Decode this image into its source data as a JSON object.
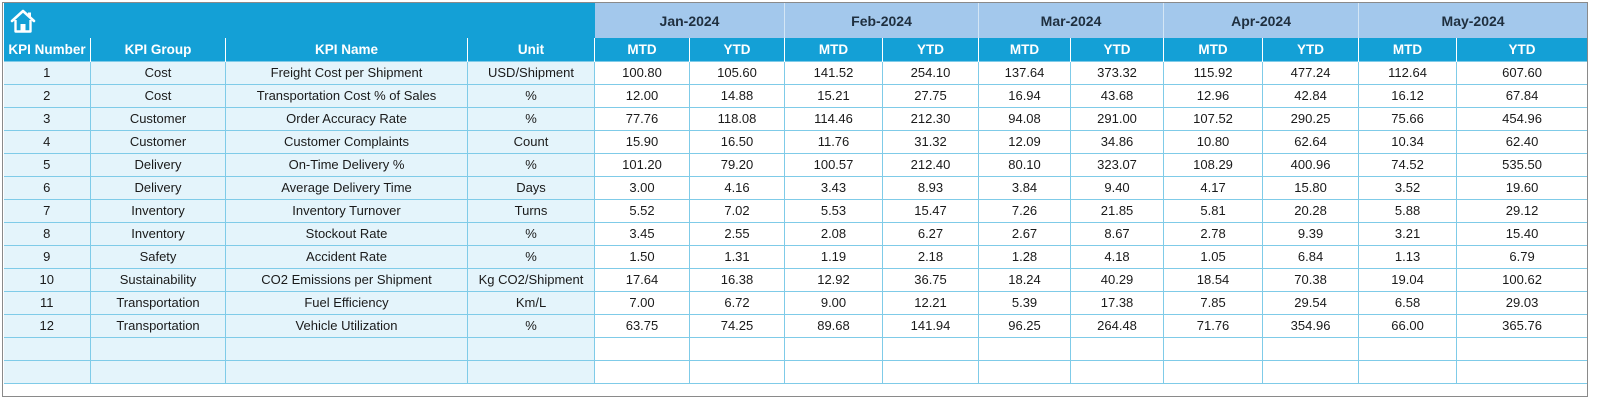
{
  "home_icon": "home-icon",
  "colors": {
    "accent": "#14a0d6",
    "month_header": "#a3c8ec",
    "info_cell": "#e4f4fb",
    "grid_line": "#7fcbe8"
  },
  "months": [
    "Jan-2024",
    "Feb-2024",
    "Mar-2024",
    "Apr-2024",
    "May-2024"
  ],
  "columns": [
    "KPI Number",
    "KPI Group",
    "KPI Name",
    "Unit"
  ],
  "sub_columns": [
    "MTD",
    "YTD"
  ],
  "rows": [
    [
      "1",
      "Cost",
      "Freight Cost per Shipment",
      "USD/Shipment",
      "100.80",
      "105.60",
      "141.52",
      "254.10",
      "137.64",
      "373.32",
      "115.92",
      "477.24",
      "112.64",
      "607.60"
    ],
    [
      "2",
      "Cost",
      "Transportation Cost % of Sales",
      "%",
      "12.00",
      "14.88",
      "15.21",
      "27.75",
      "16.94",
      "43.68",
      "12.96",
      "42.84",
      "16.12",
      "67.84"
    ],
    [
      "3",
      "Customer",
      "Order Accuracy Rate",
      "%",
      "77.76",
      "118.08",
      "114.46",
      "212.30",
      "94.08",
      "291.00",
      "107.52",
      "290.25",
      "75.66",
      "454.96"
    ],
    [
      "4",
      "Customer",
      "Customer Complaints",
      "Count",
      "15.90",
      "16.50",
      "11.76",
      "31.32",
      "12.09",
      "34.86",
      "10.80",
      "62.64",
      "10.34",
      "62.40"
    ],
    [
      "5",
      "Delivery",
      "On-Time Delivery %",
      "%",
      "101.20",
      "79.20",
      "100.57",
      "212.40",
      "80.10",
      "323.07",
      "108.29",
      "400.96",
      "74.52",
      "535.50"
    ],
    [
      "6",
      "Delivery",
      "Average Delivery Time",
      "Days",
      "3.00",
      "4.16",
      "3.43",
      "8.93",
      "3.84",
      "9.40",
      "4.17",
      "15.80",
      "3.52",
      "19.60"
    ],
    [
      "7",
      "Inventory",
      "Inventory Turnover",
      "Turns",
      "5.52",
      "7.02",
      "5.53",
      "15.47",
      "7.26",
      "21.85",
      "5.81",
      "20.28",
      "5.88",
      "29.12"
    ],
    [
      "8",
      "Inventory",
      "Stockout Rate",
      "%",
      "3.45",
      "2.55",
      "2.08",
      "6.27",
      "2.67",
      "8.67",
      "2.78",
      "9.39",
      "3.21",
      "15.40"
    ],
    [
      "9",
      "Safety",
      "Accident Rate",
      "%",
      "1.50",
      "1.31",
      "1.19",
      "2.18",
      "1.28",
      "4.18",
      "1.05",
      "6.84",
      "1.13",
      "6.79"
    ],
    [
      "10",
      "Sustainability",
      "CO2 Emissions per Shipment",
      "Kg CO2/Shipment",
      "17.64",
      "16.38",
      "12.92",
      "36.75",
      "18.24",
      "40.29",
      "18.54",
      "70.38",
      "19.04",
      "100.62"
    ],
    [
      "11",
      "Transportation",
      "Fuel Efficiency",
      "Km/L",
      "7.00",
      "6.72",
      "9.00",
      "12.21",
      "5.39",
      "17.38",
      "7.85",
      "29.54",
      "6.58",
      "29.03"
    ],
    [
      "12",
      "Transportation",
      "Vehicle Utilization",
      "%",
      "63.75",
      "74.25",
      "89.68",
      "141.94",
      "96.25",
      "264.48",
      "71.76",
      "354.96",
      "66.00",
      "365.76"
    ],
    [
      "",
      "",
      "",
      "",
      "",
      "",
      "",
      "",
      "",
      "",
      "",
      "",
      "",
      ""
    ],
    [
      "",
      "",
      "",
      "",
      "",
      "",
      "",
      "",
      "",
      "",
      "",
      "",
      "",
      ""
    ]
  ]
}
